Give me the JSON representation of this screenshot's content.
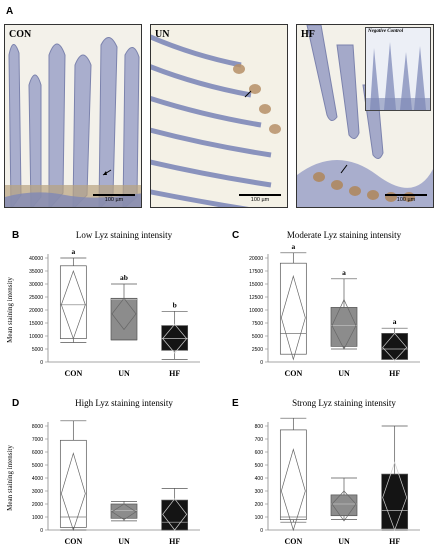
{
  "figure": {
    "panel_a_letter": "A",
    "micrographs": [
      {
        "label": "CON",
        "scale_text": "100 µm"
      },
      {
        "label": "UN",
        "scale_text": "100 µm"
      },
      {
        "label": "HF",
        "scale_text": "100 µm",
        "inset_label": "Negative Control"
      }
    ]
  },
  "colors": {
    "CON": "#ffffff",
    "UN": "#8c8c8c",
    "HF": "#141414",
    "stroke": "#555555",
    "tissue_blue": "#8a93bd",
    "tissue_brown": "#b08a5a"
  },
  "chart_data": [
    {
      "type": "box",
      "panel": "B",
      "title": "Low Lyz staining intensity",
      "ylabel": "Mean staining intensity",
      "categories": [
        "CON",
        "UN",
        "HF"
      ],
      "ylim": [
        0,
        40000
      ],
      "yticks": [
        0,
        5000,
        10000,
        15000,
        20000,
        25000,
        30000,
        35000,
        40000
      ],
      "significance": [
        "a",
        "ab",
        "b"
      ],
      "series": [
        {
          "category": "CON",
          "whisker_low": 7500,
          "q1": 9000,
          "median": 22000,
          "q3": 37000,
          "whisker_high": 40000,
          "mean": 22000,
          "ci_low": 9000,
          "ci_high": 35000
        },
        {
          "category": "UN",
          "whisker_low": 8500,
          "q1": 8500,
          "median": 24000,
          "q3": 24500,
          "whisker_high": 30000,
          "mean": 18500,
          "ci_low": 12500,
          "ci_high": 24500
        },
        {
          "category": "HF",
          "whisker_low": 1000,
          "q1": 4500,
          "median": 9000,
          "q3": 14000,
          "whisker_high": 19500,
          "mean": 9000,
          "ci_low": 3500,
          "ci_high": 14500
        }
      ]
    },
    {
      "type": "box",
      "panel": "C",
      "title": "Moderate Lyz staining intensity",
      "ylabel": "",
      "categories": [
        "CON",
        "UN",
        "HF"
      ],
      "ylim": [
        0,
        20000
      ],
      "yticks": [
        0,
        2500,
        5000,
        7500,
        10000,
        12500,
        15000,
        17500,
        20000
      ],
      "significance": [
        "a",
        "a",
        "a"
      ],
      "series": [
        {
          "category": "CON",
          "whisker_low": 1500,
          "q1": 1500,
          "median": 5500,
          "q3": 19000,
          "whisker_high": 21000,
          "mean": 8500,
          "ci_low": 500,
          "ci_high": 16500
        },
        {
          "category": "UN",
          "whisker_low": 2500,
          "q1": 3000,
          "median": 7000,
          "q3": 10500,
          "whisker_high": 16000,
          "mean": 7000,
          "ci_low": 2500,
          "ci_high": 12000
        },
        {
          "category": "HF",
          "whisker_low": 500,
          "q1": 500,
          "median": 2500,
          "q3": 5500,
          "whisker_high": 6500,
          "mean": 2800,
          "ci_low": 300,
          "ci_high": 5500
        }
      ]
    },
    {
      "type": "box",
      "panel": "D",
      "title": "High Lyz staining intensity",
      "ylabel": "Mean staining intensity",
      "categories": [
        "CON",
        "UN",
        "HF"
      ],
      "ylim": [
        0,
        8000
      ],
      "yticks": [
        0,
        1000,
        2000,
        3000,
        4000,
        5000,
        6000,
        7000,
        8000
      ],
      "significance": [
        "",
        "",
        ""
      ],
      "series": [
        {
          "category": "CON",
          "whisker_low": 0,
          "q1": 200,
          "median": 1000,
          "q3": 6900,
          "whisker_high": 8400,
          "mean": 2800,
          "ci_low": -200,
          "ci_high": 5900
        },
        {
          "category": "UN",
          "whisker_low": 700,
          "q1": 900,
          "median": 1500,
          "q3": 2000,
          "whisker_high": 2200,
          "mean": 1400,
          "ci_low": 800,
          "ci_high": 2000
        },
        {
          "category": "HF",
          "whisker_low": 0,
          "q1": 0,
          "median": 600,
          "q3": 2300,
          "whisker_high": 3200,
          "mean": 1200,
          "ci_low": 0,
          "ci_high": 2400
        }
      ]
    },
    {
      "type": "box",
      "panel": "E",
      "title": "Strong Lyz staining intensity",
      "ylabel": "",
      "categories": [
        "CON",
        "UN",
        "HF"
      ],
      "ylim": [
        0,
        800
      ],
      "yticks": [
        0,
        100,
        200,
        300,
        400,
        500,
        600,
        700,
        800
      ],
      "significance": [
        "",
        "",
        ""
      ],
      "series": [
        {
          "category": "CON",
          "whisker_low": 60,
          "q1": 80,
          "median": 100,
          "q3": 770,
          "whisker_high": 860,
          "mean": 300,
          "ci_low": -30,
          "ci_high": 620
        },
        {
          "category": "UN",
          "whisker_low": 80,
          "q1": 110,
          "median": 200,
          "q3": 270,
          "whisker_high": 400,
          "mean": 200,
          "ci_low": 70,
          "ci_high": 300
        },
        {
          "category": "HF",
          "whisker_low": 0,
          "q1": 10,
          "median": 150,
          "q3": 430,
          "whisker_high": 800,
          "mean": 250,
          "ci_low": -10,
          "ci_high": 520
        }
      ]
    }
  ]
}
